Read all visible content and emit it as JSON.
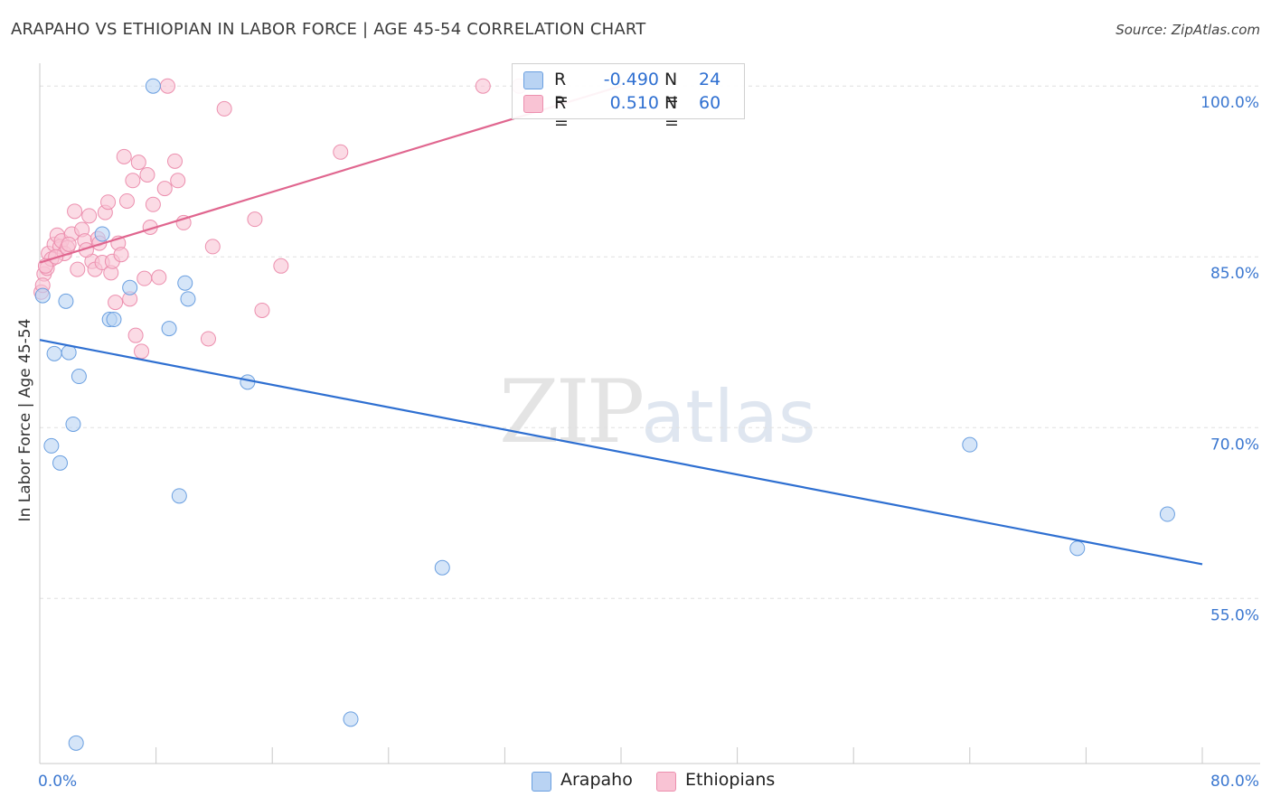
{
  "title": "ARAPAHO VS ETHIOPIAN IN LABOR FORCE | AGE 45-54 CORRELATION CHART",
  "source": "Source: ZipAtlas.com",
  "watermark": {
    "zip": "ZIP",
    "atlas": "atlas"
  },
  "legend": {
    "row1": {
      "r_label": "R =",
      "r_value": "-0.490",
      "n_label": "N =",
      "n_value": "24"
    },
    "row2": {
      "r_label": "R =",
      "r_value": "0.510",
      "n_label": "N =",
      "n_value": "60"
    }
  },
  "bottom_legend": {
    "arapaho": "Arapaho",
    "ethiopians": "Ethiopians"
  },
  "colors": {
    "arapaho_fill": "#b9d3f3",
    "arapaho_stroke": "#6a9fe0",
    "arapaho_line": "#2e6fd1",
    "ethiopian_fill": "#f9c3d4",
    "ethiopian_stroke": "#ec8fae",
    "ethiopian_line": "#e0668f",
    "tick_text": "#3c78d0",
    "grid": "#e0e0e0"
  },
  "chart_data": {
    "type": "scatter",
    "title": "ARAPAHO VS ETHIOPIAN IN LABOR FORCE | AGE 45-54 CORRELATION CHART",
    "xlabel": "",
    "ylabel": "In Labor Force | Age 45-54",
    "xlim": [
      0,
      80
    ],
    "ylim": [
      40.5,
      102
    ],
    "x_tick_labels": [
      "0.0%",
      "80.0%"
    ],
    "y_ticks": [
      55,
      70,
      85,
      100
    ],
    "y_tick_labels": [
      "55.0%",
      "70.0%",
      "85.0%",
      "100.0%"
    ],
    "series": [
      {
        "name": "Arapaho",
        "r": -0.49,
        "n": 24,
        "trend": {
          "x": [
            0,
            80
          ],
          "y": [
            77.7,
            58.0
          ]
        },
        "points": [
          [
            0.2,
            81.6
          ],
          [
            0.8,
            68.4
          ],
          [
            1.0,
            76.5
          ],
          [
            1.4,
            66.9
          ],
          [
            1.8,
            81.1
          ],
          [
            2.0,
            76.6
          ],
          [
            2.3,
            70.3
          ],
          [
            2.7,
            74.5
          ],
          [
            4.3,
            87.0
          ],
          [
            4.8,
            79.5
          ],
          [
            5.1,
            79.5
          ],
          [
            6.2,
            82.3
          ],
          [
            7.8,
            100.0
          ],
          [
            8.9,
            78.7
          ],
          [
            9.6,
            64.0
          ],
          [
            10.0,
            82.7
          ],
          [
            10.2,
            81.3
          ],
          [
            14.3,
            74.0
          ],
          [
            21.4,
            44.4
          ],
          [
            27.7,
            57.7
          ],
          [
            64.0,
            68.5
          ],
          [
            71.4,
            59.4
          ],
          [
            77.6,
            62.4
          ],
          [
            2.5,
            42.3
          ]
        ]
      },
      {
        "name": "Ethiopians",
        "r": 0.51,
        "n": 60,
        "trend": {
          "x": [
            0,
            40
          ],
          "y": [
            84.5,
            100.0
          ]
        },
        "points": [
          [
            0.1,
            81.9
          ],
          [
            0.3,
            83.5
          ],
          [
            0.5,
            84.0
          ],
          [
            0.6,
            85.3
          ],
          [
            0.8,
            84.8
          ],
          [
            1.0,
            86.1
          ],
          [
            1.2,
            86.9
          ],
          [
            1.4,
            85.9
          ],
          [
            1.5,
            86.4
          ],
          [
            1.7,
            85.3
          ],
          [
            1.9,
            85.8
          ],
          [
            2.2,
            87.0
          ],
          [
            2.4,
            89.0
          ],
          [
            2.6,
            83.9
          ],
          [
            2.9,
            87.4
          ],
          [
            3.1,
            86.4
          ],
          [
            3.4,
            88.6
          ],
          [
            3.6,
            84.6
          ],
          [
            3.8,
            83.9
          ],
          [
            4.0,
            86.6
          ],
          [
            4.3,
            84.5
          ],
          [
            4.5,
            88.9
          ],
          [
            4.7,
            89.8
          ],
          [
            4.9,
            83.6
          ],
          [
            5.0,
            84.6
          ],
          [
            5.2,
            81.0
          ],
          [
            5.4,
            86.2
          ],
          [
            5.6,
            85.2
          ],
          [
            5.8,
            93.8
          ],
          [
            6.0,
            89.9
          ],
          [
            6.2,
            81.3
          ],
          [
            6.4,
            91.7
          ],
          [
            6.6,
            78.1
          ],
          [
            6.8,
            93.3
          ],
          [
            7.0,
            76.7
          ],
          [
            7.2,
            83.1
          ],
          [
            7.4,
            92.2
          ],
          [
            7.6,
            87.6
          ],
          [
            7.8,
            89.6
          ],
          [
            8.2,
            83.2
          ],
          [
            8.6,
            91.0
          ],
          [
            8.8,
            100.0
          ],
          [
            9.3,
            93.4
          ],
          [
            9.5,
            91.7
          ],
          [
            9.9,
            88.0
          ],
          [
            11.6,
            77.8
          ],
          [
            11.9,
            85.9
          ],
          [
            12.7,
            98.0
          ],
          [
            14.8,
            88.3
          ],
          [
            15.3,
            80.3
          ],
          [
            16.6,
            84.2
          ],
          [
            20.7,
            94.2
          ],
          [
            30.5,
            100.0
          ],
          [
            33.0,
            100.0
          ],
          [
            0.2,
            82.5
          ],
          [
            0.4,
            84.2
          ],
          [
            1.1,
            85.0
          ],
          [
            2.0,
            86.1
          ],
          [
            3.2,
            85.6
          ],
          [
            4.1,
            86.2
          ]
        ]
      }
    ]
  }
}
